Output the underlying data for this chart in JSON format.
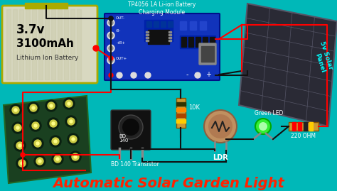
{
  "background_color": "#00B8B8",
  "title": "Automatic Solar Garden Light",
  "title_color": "#FF2200",
  "title_fontsize": 14,
  "title_fontstyle": "italic",
  "title_fontweight": "bold",
  "top_label": "TP4056 1A Li-ion Battery\nCharging Module",
  "solar_label": "5v Solar\nPanel",
  "battery_label_v": "3.7v",
  "battery_label_mah": "3100mAh",
  "battery_label_type": "Lithium Ion Battery",
  "transistor_label": "BD 140 Transistor",
  "resistor_label_1": "10K",
  "ldr_label": "LDR",
  "led_label": "Green LED",
  "resistor_label_2": "220 OHM",
  "wire_color_red": "#FF0000",
  "wire_color_black": "#111111",
  "figsize": [
    4.74,
    2.69
  ],
  "dpi": 100
}
